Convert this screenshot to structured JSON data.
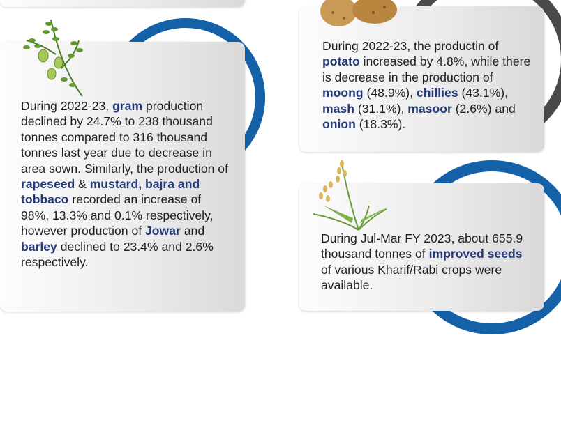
{
  "panels": {
    "gram": {
      "p1": "During 2022-23, ",
      "h1": "gram",
      "p2": " production declined by 24.7% to 238 thousand tonnes compared to 316 thousand tonnes last year due to decrease in area sown. Similarly, the production of ",
      "h2": "rapeseed",
      "p3": " & ",
      "h3": "mustard, bajra and tobbaco",
      "p4": " recorded an increase of 98%, 13.3% and 0.1% respectively, however production of ",
      "h4": "Jowar",
      "p5": " and ",
      "h5": "barley",
      "p6": " declined to 23.4% and 2.6% respectively.",
      "icon": "chickpea-plant-illustration",
      "accent_color": "#1461a8"
    },
    "potato": {
      "p1": "During 2022-23, the productin of ",
      "h1": "potato",
      "p2": " increased by 4.8%, while there is decrease in the production of ",
      "h2": "moong",
      "p3": " (48.9%), ",
      "h3": "chillies",
      "p4": " (43.1%), ",
      "h4": "mash",
      "p5": " (31.1%), ",
      "h5": "masoor",
      "p6": " (2.6%) and ",
      "h6": "onion",
      "p7": " (18.3%).",
      "icon": "potato-illustration",
      "accent_color": "#4a4a4a"
    },
    "seeds": {
      "p1": "During Jul-Mar FY 2023, about 655.9 thousand tonnes of ",
      "h1": "improved seeds",
      "p2": " of various Kharif/Rabi crops were available.",
      "icon": "rice-plant-illustration",
      "accent_color": "#1461a8"
    }
  },
  "colors": {
    "highlight": "#243a7a",
    "body_text": "#1f1f1f",
    "card_light": "#fdfdfd",
    "card_dark": "#d9d9d9"
  }
}
